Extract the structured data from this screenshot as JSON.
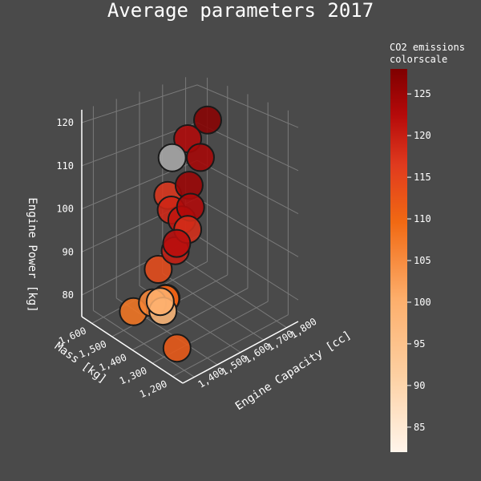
{
  "chart_data": {
    "type": "scatter3d",
    "title": "Average parameters 2017",
    "axes": {
      "x": {
        "label": "Engine Capacity [cc]",
        "range": [
          1350,
          1850
        ],
        "ticks": [
          "1,400",
          "1,500",
          "1,600",
          "1,700",
          "1,800"
        ],
        "tick_values": [
          1400,
          1500,
          1600,
          1700,
          1800
        ]
      },
      "y": {
        "label": "Mass [kg]",
        "range": [
          1150,
          1650
        ],
        "ticks": [
          "1,200",
          "1,300",
          "1,400",
          "1,500",
          "1,600"
        ],
        "tick_values": [
          1200,
          1300,
          1400,
          1500,
          1600
        ]
      },
      "z": {
        "label": "Engine Power [kg]",
        "range": [
          75,
          123
        ],
        "ticks": [
          "80",
          "90",
          "100",
          "110",
          "120"
        ],
        "tick_values": [
          80,
          90,
          100,
          110,
          120
        ]
      }
    },
    "colorbar": {
      "title_line1": "CO2 emissions",
      "title_line2": "colorscale",
      "min": 82,
      "max": 128,
      "ticks": [
        "85",
        "90",
        "95",
        "100",
        "105",
        "110",
        "115",
        "120",
        "125"
      ],
      "tick_values": [
        85,
        90,
        95,
        100,
        105,
        110,
        115,
        120,
        125
      ]
    },
    "points": [
      {
        "x": 1520,
        "y": 1430,
        "z": 81,
        "co2": 110
      },
      {
        "x": 1490,
        "y": 1460,
        "z": 80,
        "co2": 106
      },
      {
        "x": 1480,
        "y": 1410,
        "z": 82,
        "co2": 100
      },
      {
        "x": 1540,
        "y": 1450,
        "z": 80,
        "co2": 118
      },
      {
        "x": 1500,
        "y": 1420,
        "z": 79,
        "co2": 98
      },
      {
        "x": 1460,
        "y": 1520,
        "z": 77,
        "co2": 108
      },
      {
        "x": 1430,
        "y": 1270,
        "z": 77,
        "co2": 112
      },
      {
        "x": 1550,
        "y": 1500,
        "z": 85,
        "co2": 114
      },
      {
        "x": 1580,
        "y": 1450,
        "z": 90,
        "co2": 120
      },
      {
        "x": 1560,
        "y": 1420,
        "z": 93,
        "co2": 122
      },
      {
        "x": 1590,
        "y": 1400,
        "z": 96,
        "co2": 118
      },
      {
        "x": 1600,
        "y": 1440,
        "z": 97,
        "co2": 121
      },
      {
        "x": 1580,
        "y": 1470,
        "z": 99,
        "co2": 119
      },
      {
        "x": 1620,
        "y": 1420,
        "z": 100,
        "co2": 123
      },
      {
        "x": 1600,
        "y": 1510,
        "z": 101,
        "co2": 117
      },
      {
        "x": 1640,
        "y": 1450,
        "z": 104,
        "co2": 125
      },
      {
        "x": 1610,
        "y": 1500,
        "z": 110,
        "co2": 84
      },
      {
        "x": 1680,
        "y": 1440,
        "z": 110,
        "co2": 124
      },
      {
        "x": 1660,
        "y": 1480,
        "z": 114,
        "co2": 123
      },
      {
        "x": 1720,
        "y": 1450,
        "z": 118,
        "co2": 127
      }
    ]
  }
}
